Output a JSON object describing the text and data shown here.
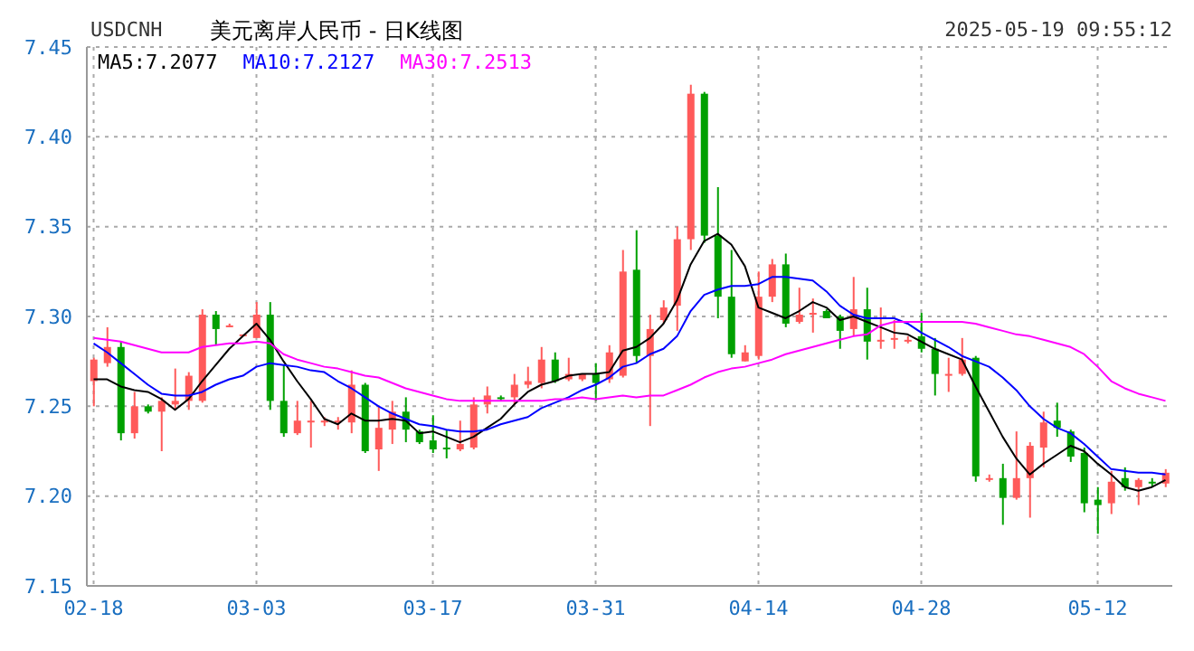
{
  "chart_data": {
    "type": "candlestick",
    "title": "美元离岸人民币 - 日K线图",
    "annotations": [
      "USDCNH",
      "2025-05-19 09:55:12"
    ],
    "categories": [
      "02-18",
      null,
      null,
      null,
      null,
      null,
      null,
      null,
      null,
      null,
      null,
      null,
      "03-03",
      null,
      null,
      null,
      null,
      null,
      null,
      null,
      null,
      null,
      null,
      null,
      null,
      "03-17",
      null,
      null,
      null,
      null,
      null,
      null,
      null,
      null,
      null,
      null,
      null,
      "03-31",
      null,
      null,
      null,
      null,
      null,
      null,
      null,
      null,
      null,
      null,
      null,
      "04-14",
      null,
      null,
      null,
      null,
      null,
      null,
      null,
      null,
      null,
      null,
      null,
      "04-28",
      null,
      null,
      null,
      null,
      null,
      null,
      null,
      null,
      null,
      null,
      null,
      null,
      "05-12",
      null,
      null,
      null,
      null,
      null
    ],
    "ohlc": [
      [
        7.264,
        7.277,
        7.25,
        7.276
      ],
      [
        7.274,
        7.294,
        7.272,
        7.283
      ],
      [
        7.283,
        7.286,
        7.231,
        7.235
      ],
      [
        7.235,
        7.258,
        7.232,
        7.25
      ],
      [
        7.25,
        7.251,
        7.246,
        7.247
      ],
      [
        7.247,
        7.255,
        7.225,
        7.253
      ],
      [
        7.251,
        7.271,
        7.248,
        7.253
      ],
      [
        7.253,
        7.269,
        7.248,
        7.267
      ],
      [
        7.253,
        7.304,
        7.252,
        7.301
      ],
      [
        7.301,
        7.303,
        7.284,
        7.293
      ],
      [
        7.295,
        7.296,
        7.294,
        7.295
      ],
      [
        7.289,
        7.29,
        7.289,
        7.29
      ],
      [
        7.288,
        7.308,
        7.288,
        7.301
      ],
      [
        7.301,
        7.308,
        7.248,
        7.253
      ],
      [
        7.253,
        7.273,
        7.233,
        7.235
      ],
      [
        7.235,
        7.253,
        7.234,
        7.242
      ],
      [
        7.241,
        7.253,
        7.227,
        7.242
      ],
      [
        7.241,
        7.244,
        7.239,
        7.242
      ],
      [
        7.241,
        7.244,
        7.237,
        7.242
      ],
      [
        7.241,
        7.27,
        7.235,
        7.262
      ],
      [
        7.262,
        7.263,
        7.224,
        7.225
      ],
      [
        7.226,
        7.25,
        7.214,
        7.238
      ],
      [
        7.237,
        7.253,
        7.229,
        7.247
      ],
      [
        7.247,
        7.255,
        7.23,
        7.237
      ],
      [
        7.236,
        7.237,
        7.229,
        7.23
      ],
      [
        7.231,
        7.245,
        7.224,
        7.226
      ],
      [
        7.227,
        7.237,
        7.221,
        7.226
      ],
      [
        7.226,
        7.242,
        7.225,
        7.229
      ],
      [
        7.227,
        7.255,
        7.226,
        7.251
      ],
      [
        7.251,
        7.261,
        7.246,
        7.256
      ],
      [
        7.255,
        7.256,
        7.253,
        7.254
      ],
      [
        7.255,
        7.268,
        7.251,
        7.262
      ],
      [
        7.262,
        7.272,
        7.26,
        7.264
      ],
      [
        7.263,
        7.283,
        7.26,
        7.276
      ],
      [
        7.276,
        7.28,
        7.263,
        7.264
      ],
      [
        7.265,
        7.277,
        7.264,
        7.268
      ],
      [
        7.265,
        7.268,
        7.264,
        7.268
      ],
      [
        7.268,
        7.274,
        7.253,
        7.263
      ],
      [
        7.265,
        7.284,
        7.263,
        7.28
      ],
      [
        7.267,
        7.337,
        7.266,
        7.325
      ],
      [
        7.326,
        7.348,
        7.274,
        7.278
      ],
      [
        7.278,
        7.301,
        7.239,
        7.293
      ],
      [
        7.298,
        7.309,
        7.296,
        7.305
      ],
      [
        7.306,
        7.35,
        7.292,
        7.343
      ],
      [
        7.343,
        7.429,
        7.337,
        7.424
      ],
      [
        7.424,
        7.425,
        7.341,
        7.345
      ],
      [
        7.345,
        7.372,
        7.299,
        7.311
      ],
      [
        7.311,
        7.337,
        7.277,
        7.279
      ],
      [
        7.275,
        7.284,
        7.275,
        7.28
      ],
      [
        7.278,
        7.325,
        7.276,
        7.311
      ],
      [
        7.311,
        7.332,
        7.308,
        7.329
      ],
      [
        7.329,
        7.335,
        7.294,
        7.296
      ],
      [
        7.297,
        7.316,
        7.296,
        7.301
      ],
      [
        7.301,
        7.31,
        7.291,
        7.302
      ],
      [
        7.303,
        7.304,
        7.299,
        7.299
      ],
      [
        7.3,
        7.301,
        7.282,
        7.292
      ],
      [
        7.293,
        7.322,
        7.289,
        7.304
      ],
      [
        7.304,
        7.316,
        7.276,
        7.286
      ],
      [
        7.287,
        7.305,
        7.282,
        7.287
      ],
      [
        7.288,
        7.298,
        7.282,
        7.288
      ],
      [
        7.287,
        7.289,
        7.285,
        7.287
      ],
      [
        7.289,
        7.302,
        7.28,
        7.282
      ],
      [
        7.282,
        7.288,
        7.256,
        7.268
      ],
      [
        7.268,
        7.277,
        7.258,
        7.268
      ],
      [
        7.268,
        7.288,
        7.267,
        7.276
      ],
      [
        7.277,
        7.278,
        7.208,
        7.211
      ],
      [
        7.21,
        7.212,
        7.208,
        7.21
      ],
      [
        7.21,
        7.218,
        7.184,
        7.199
      ],
      [
        7.199,
        7.236,
        7.198,
        7.21
      ],
      [
        7.21,
        7.23,
        7.188,
        7.228
      ],
      [
        7.227,
        7.247,
        7.216,
        7.241
      ],
      [
        7.242,
        7.252,
        7.233,
        7.238
      ],
      [
        7.236,
        7.237,
        7.219,
        7.222
      ],
      [
        7.224,
        7.227,
        7.191,
        7.196
      ],
      [
        7.198,
        7.205,
        7.179,
        7.195
      ],
      [
        7.196,
        7.214,
        7.19,
        7.208
      ],
      [
        7.21,
        7.216,
        7.203,
        7.205
      ],
      [
        7.205,
        7.21,
        7.195,
        7.209
      ],
      [
        7.208,
        7.21,
        7.205,
        7.208
      ],
      [
        7.207,
        7.215,
        7.205,
        7.213
      ]
    ],
    "colors": [
      "#ff5a5a",
      "#ff5a5a",
      "#00a000",
      "#ff5a5a",
      "#00a000",
      "#ff5a5a",
      "#ff5a5a",
      "#ff5a5a",
      "#ff5a5a",
      "#00a000",
      "#ff5a5a",
      "#ff5a5a",
      "#ff5a5a",
      "#00a000",
      "#00a000",
      "#ff5a5a",
      "#ff5a5a",
      "#ff5a5a",
      "#ff5a5a",
      "#ff5a5a",
      "#00a000",
      "#ff5a5a",
      "#ff5a5a",
      "#00a000",
      "#00a000",
      "#00a000",
      "#00a000",
      "#ff5a5a",
      "#ff5a5a",
      "#ff5a5a",
      "#00a000",
      "#ff5a5a",
      "#ff5a5a",
      "#ff5a5a",
      "#00a000",
      "#ff5a5a",
      "#ff5a5a",
      "#00a000",
      "#ff5a5a",
      "#ff5a5a",
      "#00a000",
      "#ff5a5a",
      "#ff5a5a",
      "#ff5a5a",
      "#ff5a5a",
      "#00a000",
      "#00a000",
      "#00a000",
      "#ff5a5a",
      "#ff5a5a",
      "#ff5a5a",
      "#00a000",
      "#ff5a5a",
      "#ff5a5a",
      "#00a000",
      "#00a000",
      "#ff5a5a",
      "#00a000",
      "#ff5a5a",
      "#ff5a5a",
      "#ff5a5a",
      "#00a000",
      "#00a000",
      "#ff5a5a",
      "#ff5a5a",
      "#00a000",
      "#ff5a5a",
      "#00a000",
      "#ff5a5a",
      "#ff5a5a",
      "#ff5a5a",
      "#00a000",
      "#00a000",
      "#00a000",
      "#00a000",
      "#ff5a5a",
      "#00a000",
      "#ff5a5a",
      "#00a000",
      "#ff5a5a"
    ],
    "series": [
      {
        "type": "line",
        "name": "MA5:7.2077",
        "color": "#000000",
        "values": [
          7.265,
          7.265,
          7.261,
          7.259,
          7.258,
          7.254,
          7.248,
          7.254,
          7.264,
          7.273,
          7.282,
          7.289,
          7.296,
          7.287,
          7.275,
          7.264,
          7.254,
          7.243,
          7.24,
          7.246,
          7.242,
          7.242,
          7.243,
          7.242,
          7.235,
          7.236,
          7.233,
          7.23,
          7.233,
          7.238,
          7.243,
          7.251,
          7.258,
          7.262,
          7.264,
          7.267,
          7.268,
          7.268,
          7.269,
          7.281,
          7.283,
          7.288,
          7.296,
          7.309,
          7.329,
          7.342,
          7.346,
          7.34,
          7.328,
          7.305,
          7.302,
          7.299,
          7.303,
          7.308,
          7.305,
          7.298,
          7.3,
          7.297,
          7.294,
          7.291,
          7.29,
          7.286,
          7.282,
          7.279,
          7.276,
          7.261,
          7.247,
          7.233,
          7.221,
          7.212,
          7.218,
          7.223,
          7.228,
          7.225,
          7.218,
          7.212,
          7.205,
          7.203,
          7.205,
          7.209
        ]
      },
      {
        "type": "line",
        "name": "MA10:7.2127",
        "color": "#0000ff",
        "values": [
          7.285,
          7.28,
          7.274,
          7.268,
          7.262,
          7.257,
          7.256,
          7.256,
          7.258,
          7.262,
          7.265,
          7.267,
          7.272,
          7.274,
          7.273,
          7.272,
          7.27,
          7.269,
          7.264,
          7.26,
          7.255,
          7.25,
          7.246,
          7.243,
          7.24,
          7.239,
          7.237,
          7.236,
          7.236,
          7.237,
          7.24,
          7.242,
          7.244,
          7.249,
          7.252,
          7.255,
          7.259,
          7.262,
          7.266,
          7.272,
          7.274,
          7.279,
          7.282,
          7.289,
          7.303,
          7.312,
          7.315,
          7.317,
          7.317,
          7.318,
          7.322,
          7.322,
          7.321,
          7.32,
          7.314,
          7.306,
          7.301,
          7.299,
          7.299,
          7.299,
          7.296,
          7.291,
          7.287,
          7.283,
          7.278,
          7.275,
          7.272,
          7.266,
          7.259,
          7.25,
          7.243,
          7.238,
          7.235,
          7.229,
          7.222,
          7.215,
          7.214,
          7.213,
          7.213,
          7.212
        ]
      },
      {
        "type": "line",
        "name": "MA30:7.2513",
        "color": "#ff00ff",
        "values": [
          7.288,
          7.287,
          7.286,
          7.284,
          7.282,
          7.28,
          7.28,
          7.28,
          7.283,
          7.284,
          7.285,
          7.285,
          7.286,
          7.285,
          7.279,
          7.276,
          7.274,
          7.272,
          7.271,
          7.269,
          7.267,
          7.266,
          7.263,
          7.26,
          7.258,
          7.256,
          7.254,
          7.253,
          7.253,
          7.253,
          7.253,
          7.253,
          7.253,
          7.253,
          7.254,
          7.254,
          7.255,
          7.254,
          7.255,
          7.256,
          7.255,
          7.256,
          7.256,
          7.259,
          7.262,
          7.266,
          7.269,
          7.271,
          7.272,
          7.274,
          7.276,
          7.279,
          7.281,
          7.283,
          7.285,
          7.287,
          7.289,
          7.29,
          7.295,
          7.297,
          7.297,
          7.297,
          7.297,
          7.297,
          7.297,
          7.296,
          7.294,
          7.292,
          7.29,
          7.289,
          7.287,
          7.285,
          7.283,
          7.279,
          7.272,
          7.264,
          7.26,
          7.257,
          7.255,
          7.253
        ]
      }
    ],
    "ylim": [
      7.15,
      7.45
    ],
    "yticks": [
      7.15,
      {
        "value": 7.2,
        "label": "7.20"
      },
      7.25,
      {
        "value": 7.3,
        "label": "7.30"
      },
      7.35,
      {
        "value": 7.4,
        "label": "7.40"
      },
      7.45
    ],
    "grid": true,
    "legend": "top left"
  }
}
